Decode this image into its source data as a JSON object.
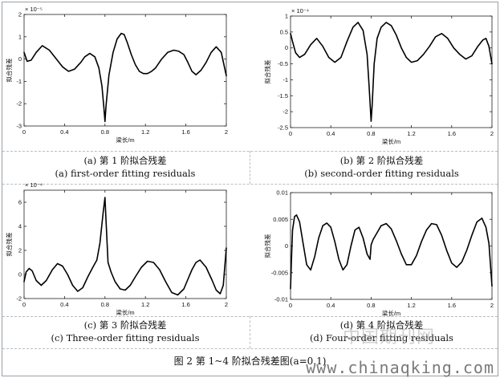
{
  "figure": {
    "title": "图 2  第 1~4 阶拟合残差图(a=0.1)",
    "watermark_cn": "中国期刊网",
    "watermark_url": "www.chinaqking.com"
  },
  "panels": [
    {
      "caption_cn": "(a) 第 1 阶拟合残差",
      "caption_en": "(a) first-order fitting residuals"
    },
    {
      "caption_cn": "(b) 第 2 阶拟合残差",
      "caption_en": "(b) second-order fitting residuals"
    },
    {
      "caption_cn": "(c) 第 3 阶拟合残差",
      "caption_en": "(c) Three-order fitting residuals"
    },
    {
      "caption_cn": "(d) 第 4 阶拟合残差",
      "caption_en": "(d) Four-order fitting residuals"
    }
  ],
  "chart_data": [
    {
      "type": "line",
      "xlabel": "梁长/m",
      "ylabel": "拟合残差",
      "exponent": "× 10⁻⁵",
      "xlim": [
        0,
        2
      ],
      "ylim": [
        -3,
        2
      ],
      "xticks": [
        0,
        0.4,
        0.8,
        1.2,
        1.6,
        2
      ],
      "xtick_labels": [
        "0",
        "0.4",
        "0.8",
        "1.2",
        "1.6",
        "2"
      ],
      "yticks": [
        -3,
        -2,
        -1,
        0,
        1,
        2
      ],
      "ytick_labels": [
        "-3",
        "-2",
        "-1",
        "0",
        "1",
        "2"
      ],
      "series": [
        {
          "x": [
            0,
            0.03,
            0.07,
            0.12,
            0.18,
            0.25,
            0.32,
            0.38,
            0.44,
            0.5,
            0.56,
            0.6,
            0.65,
            0.7,
            0.74,
            0.77,
            0.79,
            0.8,
            0.81,
            0.84,
            0.88,
            0.92,
            0.96,
            0.99,
            1.02,
            1.06,
            1.1,
            1.14,
            1.18,
            1.22,
            1.26,
            1.3,
            1.36,
            1.42,
            1.48,
            1.53,
            1.58,
            1.62,
            1.66,
            1.7,
            1.75,
            1.8,
            1.85,
            1.9,
            1.95,
            2.0
          ],
          "y": [
            0.3,
            -0.1,
            -0.05,
            0.3,
            0.6,
            0.4,
            0.0,
            -0.35,
            -0.55,
            -0.45,
            -0.15,
            0.1,
            0.25,
            0.1,
            -0.4,
            -1.2,
            -2.2,
            -2.8,
            -2.1,
            -0.7,
            0.3,
            0.9,
            1.15,
            1.1,
            0.75,
            0.2,
            -0.25,
            -0.55,
            -0.65,
            -0.65,
            -0.55,
            -0.4,
            0.0,
            0.3,
            0.4,
            0.35,
            0.2,
            -0.15,
            -0.55,
            -0.7,
            -0.5,
            -0.15,
            0.3,
            0.55,
            0.3,
            -0.75
          ]
        }
      ]
    },
    {
      "type": "line",
      "xlabel": "梁长/m",
      "ylabel": "拟合残差",
      "exponent": "× 10⁻⁴",
      "xlim": [
        0,
        2
      ],
      "ylim": [
        -2.5,
        1
      ],
      "xticks": [
        0,
        0.4,
        0.8,
        1.2,
        1.6,
        2
      ],
      "xtick_labels": [
        "0",
        "0.4",
        "0.8",
        "1.2",
        "1.6",
        "2"
      ],
      "yticks": [
        -2.5,
        -2,
        -1.5,
        -1,
        -0.5,
        0,
        0.5,
        1
      ],
      "ytick_labels": [
        "-2.5",
        "-2",
        "-1.5",
        "-1",
        "-0.5",
        "0",
        "0.5",
        "1"
      ],
      "series": [
        {
          "x": [
            0,
            0.02,
            0.05,
            0.09,
            0.14,
            0.2,
            0.26,
            0.32,
            0.38,
            0.44,
            0.5,
            0.56,
            0.62,
            0.67,
            0.72,
            0.76,
            0.78,
            0.8,
            0.81,
            0.83,
            0.86,
            0.9,
            0.95,
            1.0,
            1.05,
            1.1,
            1.15,
            1.2,
            1.26,
            1.32,
            1.38,
            1.44,
            1.5,
            1.56,
            1.62,
            1.68,
            1.74,
            1.8,
            1.86,
            1.91,
            1.94,
            1.97,
            2.0
          ],
          "y": [
            0.45,
            0.2,
            -0.15,
            -0.3,
            -0.2,
            0.1,
            0.3,
            0.05,
            -0.3,
            -0.45,
            -0.3,
            0.2,
            0.65,
            0.8,
            0.55,
            -0.2,
            -1.2,
            -2.3,
            -1.8,
            -0.5,
            0.3,
            0.65,
            0.8,
            0.7,
            0.4,
            0.0,
            -0.3,
            -0.45,
            -0.4,
            -0.2,
            0.05,
            0.35,
            0.45,
            0.3,
            0.0,
            -0.2,
            -0.35,
            -0.25,
            0.05,
            0.25,
            0.3,
            0.05,
            -0.5
          ]
        }
      ]
    },
    {
      "type": "line",
      "xlabel": "梁长/m",
      "ylabel": "拟合残差",
      "exponent": "× 10⁻⁴",
      "xlim": [
        0,
        2
      ],
      "ylim": [
        -2,
        7
      ],
      "xticks": [
        0,
        0.4,
        0.8,
        1.2,
        1.6,
        2
      ],
      "xtick_labels": [
        "0",
        "0.4",
        "0.8",
        "1.2",
        "1.6",
        "2"
      ],
      "yticks": [
        -2,
        0,
        2,
        4,
        6
      ],
      "ytick_labels": [
        "-2",
        "0",
        "2",
        "4",
        "6"
      ],
      "series": [
        {
          "x": [
            0,
            0.02,
            0.05,
            0.08,
            0.12,
            0.17,
            0.22,
            0.28,
            0.33,
            0.38,
            0.43,
            0.48,
            0.53,
            0.58,
            0.63,
            0.68,
            0.72,
            0.75,
            0.78,
            0.8,
            0.81,
            0.83,
            0.86,
            0.9,
            0.95,
            1.0,
            1.05,
            1.1,
            1.16,
            1.22,
            1.28,
            1.34,
            1.4,
            1.46,
            1.52,
            1.58,
            1.62,
            1.66,
            1.7,
            1.74,
            1.8,
            1.86,
            1.9,
            1.94,
            1.97,
            2.0
          ],
          "y": [
            -0.6,
            0.2,
            0.5,
            0.3,
            -0.5,
            -0.9,
            -0.5,
            0.4,
            0.9,
            0.7,
            0.0,
            -0.9,
            -1.4,
            -1.1,
            -0.2,
            0.6,
            1.2,
            2.6,
            5.0,
            6.4,
            4.5,
            1.0,
            0.2,
            -0.6,
            -1.2,
            -1.3,
            -0.9,
            -0.2,
            0.6,
            1.1,
            1.0,
            0.4,
            -0.6,
            -1.5,
            -1.7,
            -1.2,
            -0.4,
            0.4,
            1.0,
            1.2,
            0.6,
            -0.5,
            -1.3,
            -1.6,
            -0.9,
            2.2
          ]
        }
      ]
    },
    {
      "type": "line",
      "xlabel": "梁长/m",
      "ylabel": "拟合残差",
      "exponent": "",
      "xlim": [
        0,
        2
      ],
      "ylim": [
        -0.01,
        0.01
      ],
      "xticks": [
        0,
        0.4,
        0.8,
        1.2,
        1.6,
        2
      ],
      "xtick_labels": [
        "0",
        "0.4",
        "0.8",
        "1.2",
        "1.6",
        "2"
      ],
      "yticks": [
        -0.01,
        -0.005,
        0,
        0.005,
        0.01
      ],
      "ytick_labels": [
        "-0.01",
        "-0.005",
        "0",
        "0.005",
        "0.01"
      ],
      "series": [
        {
          "x": [
            0,
            0.01,
            0.02,
            0.04,
            0.06,
            0.09,
            0.12,
            0.16,
            0.2,
            0.24,
            0.28,
            0.32,
            0.36,
            0.4,
            0.44,
            0.48,
            0.52,
            0.56,
            0.6,
            0.64,
            0.68,
            0.72,
            0.76,
            0.79,
            0.8,
            0.82,
            0.86,
            0.9,
            0.95,
            1.0,
            1.05,
            1.1,
            1.15,
            1.2,
            1.25,
            1.3,
            1.35,
            1.4,
            1.45,
            1.5,
            1.55,
            1.6,
            1.65,
            1.7,
            1.75,
            1.8,
            1.85,
            1.9,
            1.94,
            1.97,
            2.0
          ],
          "y": [
            -0.008,
            -0.002,
            0.003,
            0.0055,
            0.0058,
            0.0045,
            0.001,
            -0.0035,
            -0.0045,
            -0.002,
            0.0015,
            0.0038,
            0.0043,
            0.0035,
            0.0008,
            -0.0025,
            -0.0045,
            -0.0035,
            0.0,
            0.003,
            0.0035,
            0.0015,
            -0.0015,
            -0.0025,
            0.0002,
            0.0012,
            0.0025,
            0.0038,
            0.0042,
            0.0032,
            0.001,
            -0.0015,
            -0.0035,
            -0.0035,
            -0.0018,
            0.0008,
            0.003,
            0.0042,
            0.004,
            0.002,
            -0.0008,
            -0.0032,
            -0.004,
            -0.003,
            -0.0008,
            0.002,
            0.0045,
            0.0052,
            0.0035,
            0.0005,
            -0.0075
          ]
        }
      ]
    }
  ]
}
